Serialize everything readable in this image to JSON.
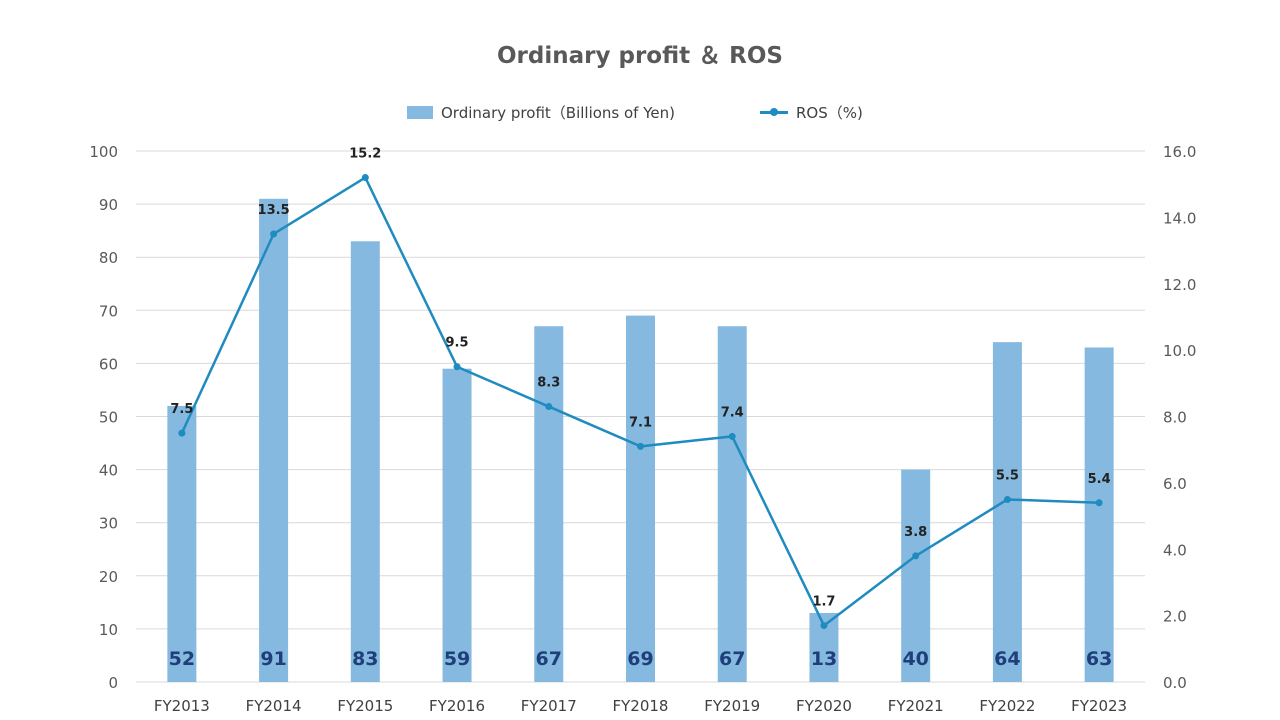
{
  "chart_data": {
    "type": "bar",
    "title": "Ordinary profit ＆ ROS",
    "categories": [
      "FY2013",
      "FY2014",
      "FY2015",
      "FY2016",
      "FY2017",
      "FY2018",
      "FY2019",
      "FY2020",
      "FY2021",
      "FY2022",
      "FY2023"
    ],
    "series": [
      {
        "name": "Ordinary profit（Billions of Yen)",
        "type": "bar",
        "axis": "left",
        "color": "#85b9df",
        "values": [
          52,
          91,
          83,
          59,
          67,
          69,
          67,
          13,
          40,
          64,
          63
        ],
        "labels": [
          "52",
          "91",
          "83",
          "59",
          "67",
          "69",
          "67",
          "13",
          "40",
          "64",
          "63"
        ]
      },
      {
        "name": "ROS（%)",
        "type": "line",
        "axis": "right",
        "color": "#1f8bbf",
        "values": [
          7.5,
          13.5,
          15.2,
          9.5,
          8.3,
          7.1,
          7.4,
          1.7,
          3.8,
          5.5,
          5.4
        ],
        "labels": [
          "7.5",
          "13.5",
          "15.2",
          "9.5",
          "8.3",
          "7.1",
          "7.4",
          "1.7",
          "3.8",
          "5.5",
          "5.4"
        ]
      }
    ],
    "y_left": {
      "lim": [
        0,
        100
      ],
      "ticks": [
        "0",
        "10",
        "20",
        "30",
        "40",
        "50",
        "60",
        "70",
        "80",
        "90",
        "100"
      ]
    },
    "y_right": {
      "lim": [
        0,
        16
      ],
      "ticks": [
        "0.0",
        "2.0",
        "4.0",
        "6.0",
        "8.0",
        "10.0",
        "12.0",
        "14.0",
        "16.0"
      ]
    },
    "grid": true,
    "legend_position": "top"
  }
}
